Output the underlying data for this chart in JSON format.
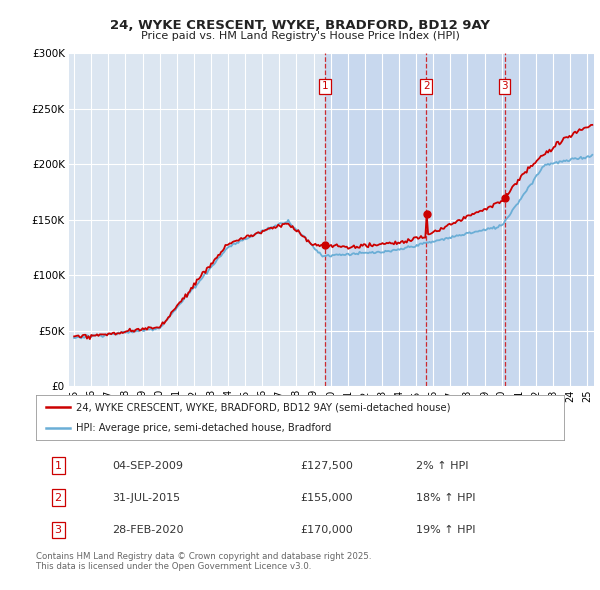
{
  "title": "24, WYKE CRESCENT, WYKE, BRADFORD, BD12 9AY",
  "subtitle": "Price paid vs. HM Land Registry's House Price Index (HPI)",
  "background_color": "#ffffff",
  "plot_bg_color": "#dce6f1",
  "plot_bg_color_shaded": "#c8d8ee",
  "grid_color": "#ffffff",
  "sale_color": "#cc0000",
  "hpi_color": "#6baed6",
  "vline_color": "#cc0000",
  "transactions": [
    {
      "date": 2009.67,
      "price": 127500,
      "label": "1"
    },
    {
      "date": 2015.58,
      "price": 155000,
      "label": "2"
    },
    {
      "date": 2020.17,
      "price": 170000,
      "label": "3"
    }
  ],
  "legend_line1": "24, WYKE CRESCENT, WYKE, BRADFORD, BD12 9AY (semi-detached house)",
  "legend_line2": "HPI: Average price, semi-detached house, Bradford",
  "footnote": "Contains HM Land Registry data © Crown copyright and database right 2025.\nThis data is licensed under the Open Government Licence v3.0.",
  "ylim": [
    0,
    300000
  ],
  "yticks": [
    0,
    50000,
    100000,
    150000,
    200000,
    250000,
    300000
  ],
  "xlim_start": 1994.7,
  "xlim_end": 2025.4,
  "transactions_info": [
    {
      "num": "1",
      "date": "04-SEP-2009",
      "price": "£127,500",
      "change": "2% ↑ HPI"
    },
    {
      "num": "2",
      "date": "31-JUL-2015",
      "price": "£155,000",
      "change": "18% ↑ HPI"
    },
    {
      "num": "3",
      "date": "28-FEB-2020",
      "price": "£170,000",
      "change": "19% ↑ HPI"
    }
  ]
}
